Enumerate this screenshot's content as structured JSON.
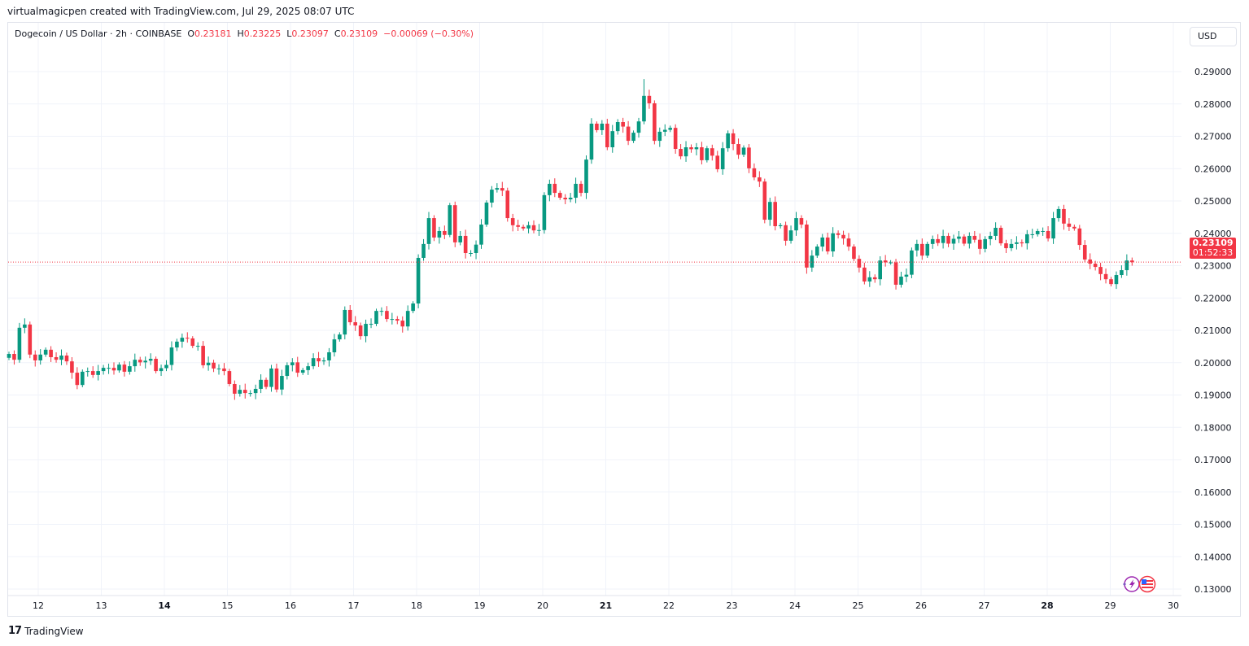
{
  "credit": "virtualmagicpen created with TradingView.com, Jul 29, 2025 08:07 UTC",
  "legend": {
    "symbol": "Dogecoin / US Dollar · 2h · COINBASE",
    "o_label": "O",
    "o": "0.23181",
    "h_label": "H",
    "h": "0.23225",
    "l_label": "L",
    "l": "0.23097",
    "c_label": "C",
    "c": "0.23109",
    "change": "−0.00069 (−0.30%)"
  },
  "currency": "USD",
  "last_price": {
    "value": "0.23109",
    "countdown": "01:52:33"
  },
  "logo": "TradingView",
  "icons": [
    "lightning-icon",
    "us-flag-icon"
  ],
  "colors": {
    "up": "#089981",
    "down": "#f23645",
    "grid": "#f0f3fa",
    "last_line": "#f23645"
  },
  "chart_data": {
    "type": "candlestick",
    "symbol": "DOGE/USD",
    "interval": "2h",
    "first_candle": "Jul 11 12:00",
    "last_candle": "Jul 29 08:00",
    "ylim": [
      0.125,
      0.2975
    ],
    "grid": true,
    "y_ticks": [
      "0.29000",
      "0.28000",
      "0.27000",
      "0.26000",
      "0.25000",
      "0.24000",
      "0.23000",
      "0.22000",
      "0.21000",
      "0.20000",
      "0.19000",
      "0.18000",
      "0.17000",
      "0.16000",
      "0.15000",
      "0.14000",
      "0.13000"
    ],
    "x_ticks": [
      {
        "label": "12",
        "bold": false
      },
      {
        "label": "13",
        "bold": false
      },
      {
        "label": "14",
        "bold": true
      },
      {
        "label": "15",
        "bold": false
      },
      {
        "label": "16",
        "bold": false
      },
      {
        "label": "17",
        "bold": false
      },
      {
        "label": "18",
        "bold": false
      },
      {
        "label": "19",
        "bold": false
      },
      {
        "label": "20",
        "bold": false
      },
      {
        "label": "21",
        "bold": true
      },
      {
        "label": "22",
        "bold": false
      },
      {
        "label": "23",
        "bold": false
      },
      {
        "label": "24",
        "bold": false
      },
      {
        "label": "25",
        "bold": false
      },
      {
        "label": "26",
        "bold": false
      },
      {
        "label": "27",
        "bold": false
      },
      {
        "label": "28",
        "bold": true
      },
      {
        "label": "29",
        "bold": false
      },
      {
        "label": "30",
        "bold": false
      }
    ],
    "period_high": 0.2877,
    "period_low": 0.1885,
    "first_open": 0.2015,
    "closes": [
      0.2027,
      0.2009,
      0.2108,
      0.2118,
      0.2025,
      0.2007,
      0.2025,
      0.204,
      0.2017,
      0.2009,
      0.2022,
      0.2004,
      0.1969,
      0.1931,
      0.1972,
      0.1974,
      0.1962,
      0.1974,
      0.1984,
      0.1984,
      0.1976,
      0.1994,
      0.1972,
      0.1989,
      0.2009,
      0.2001,
      0.2006,
      0.2012,
      0.1974,
      0.1983,
      0.1993,
      0.2047,
      0.2065,
      0.2077,
      0.2075,
      0.2052,
      0.2052,
      0.1992,
      0.2,
      0.1982,
      0.1982,
      0.1974,
      0.1934,
      0.1904,
      0.1916,
      0.1906,
      0.1906,
      0.1919,
      0.1947,
      0.1925,
      0.1982,
      0.1917,
      0.1959,
      0.1992,
      0.2001,
      0.1969,
      0.1977,
      0.1989,
      0.2014,
      0.2004,
      0.2007,
      0.2032,
      0.2072,
      0.2087,
      0.2163,
      0.2125,
      0.2115,
      0.2082,
      0.212,
      0.212,
      0.216,
      0.216,
      0.2135,
      0.2135,
      0.213,
      0.2112,
      0.216,
      0.2183,
      0.2324,
      0.2367,
      0.2447,
      0.2387,
      0.2407,
      0.2395,
      0.2487,
      0.2372,
      0.2392,
      0.2339,
      0.2339,
      0.2365,
      0.2427,
      0.2495,
      0.2535,
      0.254,
      0.2532,
      0.2447,
      0.2425,
      0.242,
      0.2415,
      0.2425,
      0.2409,
      0.241,
      0.2518,
      0.2553,
      0.2525,
      0.251,
      0.2505,
      0.251,
      0.2553,
      0.2525,
      0.2628,
      0.2739,
      0.2719,
      0.2739,
      0.2666,
      0.2716,
      0.2744,
      0.273,
      0.2686,
      0.2711,
      0.2746,
      0.2825,
      0.2802,
      0.2686,
      0.2714,
      0.272,
      0.2726,
      0.2661,
      0.2638,
      0.2666,
      0.266,
      0.2666,
      0.2626,
      0.2663,
      0.264,
      0.2598,
      0.2663,
      0.2709,
      0.2676,
      0.2643,
      0.2665,
      0.2601,
      0.2573,
      0.256,
      0.2442,
      0.2497,
      0.2422,
      0.2425,
      0.2377,
      0.2409,
      0.2447,
      0.2427,
      0.2294,
      0.2331,
      0.2359,
      0.2387,
      0.2344,
      0.24,
      0.2395,
      0.2384,
      0.2359,
      0.2321,
      0.2294,
      0.2251,
      0.2264,
      0.2258,
      0.2316,
      0.231,
      0.231,
      0.2241,
      0.2266,
      0.2272,
      0.2347,
      0.2367,
      0.2331,
      0.2367,
      0.2382,
      0.237,
      0.2392,
      0.2368,
      0.2383,
      0.239,
      0.2368,
      0.2392,
      0.238,
      0.2352,
      0.2382,
      0.2392,
      0.2417,
      0.2369,
      0.2354,
      0.2367,
      0.2372,
      0.2369,
      0.2397,
      0.2397,
      0.2407,
      0.2407,
      0.2384,
      0.2447,
      0.2475,
      0.243,
      0.242,
      0.2415,
      0.2364,
      0.2319,
      0.2306,
      0.2296,
      0.2274,
      0.2258,
      0.2243,
      0.2271,
      0.2286,
      0.2316,
      0.23109
    ]
  }
}
